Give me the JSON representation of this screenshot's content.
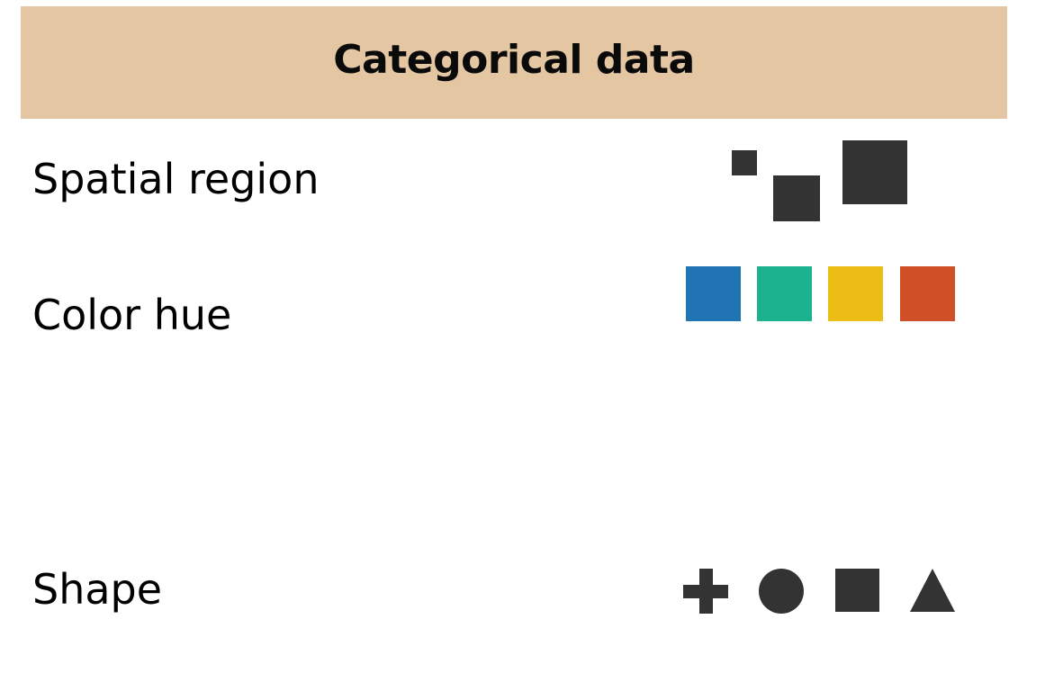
{
  "title": "Categorical data",
  "rows": [
    {
      "label": "Spatial region",
      "icons": [
        "small-square-icon",
        "medium-square-icon",
        "large-square-icon"
      ]
    },
    {
      "label": "Color hue",
      "swatches": [
        "#2174b4",
        "#1cb28f",
        "#ecbd15",
        "#cf5027"
      ]
    },
    {
      "label": "Shape",
      "icons": [
        "plus-icon",
        "circle-icon",
        "square-icon",
        "triangle-icon"
      ]
    }
  ],
  "colors": {
    "header_background": "#e4c6a2",
    "glyph": "#333333"
  }
}
